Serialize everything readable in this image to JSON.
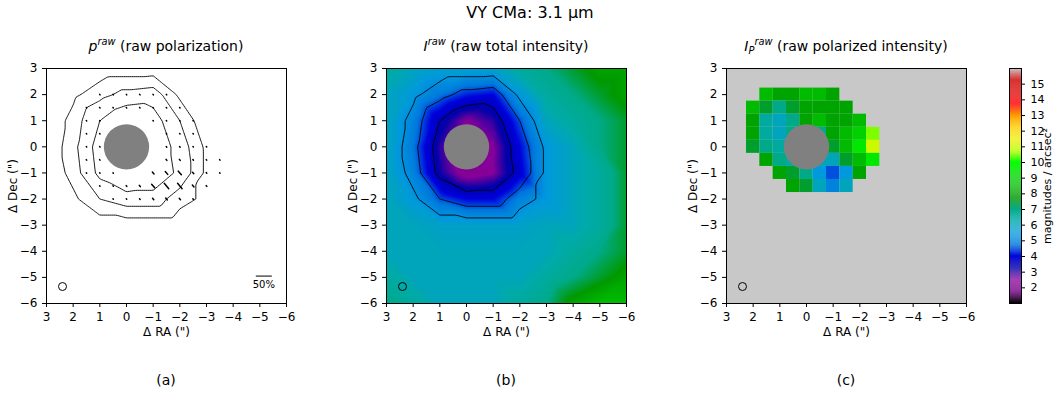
{
  "title": "VY CMa: 3.1 μm",
  "colorbar": {
    "range": [
      1,
      16
    ],
    "ticks": [
      2,
      3,
      4,
      5,
      6,
      7,
      8,
      9,
      10,
      11,
      12,
      13,
      14,
      15
    ],
    "label": "magnitudes / arcsec²"
  },
  "chart_data": [
    {
      "type": "vector",
      "panel": "(a)",
      "title": {
        "symbol": "p",
        "superscript": "raw",
        "text": "(raw polarization)"
      },
      "xlabel": "Δ RA (\")",
      "ylabel": "Δ Dec (\")",
      "xlim": [
        3,
        -6
      ],
      "ylim": [
        -6,
        3
      ],
      "xticks": [
        3,
        2,
        1,
        0,
        -1,
        -2,
        -3,
        -4,
        -5,
        -6
      ],
      "yticks": [
        -6,
        -5,
        -4,
        -3,
        -2,
        -1,
        0,
        1,
        2,
        3
      ],
      "contour_levels": [
        3.5,
        4.5,
        5.3
      ],
      "vectors": {
        "x": [
          1.5,
          1,
          0.5,
          0,
          -0.5,
          -1,
          -1.5,
          -2,
          -2.5,
          -3,
          -3.5
        ],
        "y": [
          2,
          1.5,
          1,
          0.5,
          0,
          -0.5,
          -1,
          -1.5,
          -2
        ],
        "p": [
          [
            null,
            2,
            2,
            2,
            2,
            2,
            2,
            null,
            null,
            null,
            null
          ],
          [
            2,
            2,
            2,
            2,
            2,
            2,
            2,
            2,
            null,
            null,
            null
          ],
          [
            2,
            2,
            null,
            null,
            null,
            2,
            2,
            2,
            2,
            null,
            null
          ],
          [
            2,
            2,
            null,
            null,
            null,
            null,
            2,
            2,
            2,
            null,
            null
          ],
          [
            2,
            2,
            null,
            null,
            null,
            null,
            3,
            3,
            2,
            2,
            null
          ],
          [
            2,
            2,
            null,
            null,
            null,
            null,
            4,
            4,
            3,
            2,
            2
          ],
          [
            2,
            2,
            2,
            null,
            null,
            8,
            12,
            15,
            6,
            3,
            2
          ],
          [
            null,
            2,
            2,
            3,
            5,
            15,
            22,
            22,
            8,
            3,
            null
          ],
          [
            null,
            null,
            2,
            2,
            3,
            6,
            8,
            6,
            3,
            null,
            null
          ]
        ],
        "angle": 40
      },
      "scale_bar": {
        "p": 50,
        "label": "50%",
        "x": -5.15,
        "y": -4.95
      },
      "mask": {
        "x": 0,
        "y": 0,
        "radius": 0.85
      },
      "beam": {
        "x": 2.4,
        "y": -5.35,
        "radius": 0.15
      }
    },
    {
      "type": "heatmap",
      "panel": "(b)",
      "title": {
        "symbol": "I",
        "superscript": "raw",
        "text": "(raw total intensity)"
      },
      "xlabel": "Δ RA (\")",
      "ylabel": "Δ Dec (\")",
      "xlim": [
        3,
        -6
      ],
      "ylim": [
        -6,
        3
      ],
      "xticks": [
        3,
        2,
        1,
        0,
        -1,
        -2,
        -3,
        -4,
        -5,
        -6
      ],
      "yticks": [
        -6,
        -5,
        -4,
        -3,
        -2,
        -1,
        0,
        1,
        2,
        3
      ],
      "contour_levels": [
        3.5,
        4.5,
        5.3
      ],
      "grid": {
        "x": [
          3,
          2,
          1,
          0,
          -1,
          -2,
          -3,
          -4,
          -5,
          -6
        ],
        "y": [
          3,
          2,
          1,
          0,
          -1,
          -2,
          -3,
          -4,
          -5,
          -6
        ],
        "values": [
          [
            6.5,
            6,
            5.8,
            5.8,
            5.8,
            6.5,
            7,
            7.5,
            8,
            8
          ],
          [
            6,
            5.5,
            4.8,
            4.2,
            4.0,
            5.5,
            6.5,
            7,
            7.5,
            8
          ],
          [
            6,
            5,
            3.5,
            2.5,
            3,
            4.5,
            6,
            6.5,
            7,
            7.5
          ],
          [
            6,
            4.8,
            3,
            1.8,
            2.5,
            4,
            5.5,
            6,
            7,
            7.5
          ],
          [
            6,
            5,
            3.2,
            2.2,
            2.5,
            3.8,
            5.5,
            6,
            6.5,
            7.5
          ],
          [
            6,
            5.5,
            4.5,
            4,
            4,
            5,
            5.5,
            6,
            6.5,
            7.5
          ],
          [
            6,
            6,
            5.8,
            5.8,
            5.8,
            5.8,
            6,
            6,
            6.5,
            7.5
          ],
          [
            6,
            6,
            6,
            6,
            6,
            6,
            6,
            6.5,
            7,
            7.5
          ],
          [
            6.5,
            6,
            6,
            6,
            6,
            6,
            6.5,
            7,
            7.5,
            8
          ],
          [
            7,
            6.5,
            6,
            6,
            6,
            6.5,
            7,
            8,
            8.5,
            8.5
          ]
        ]
      },
      "mask": {
        "x": 0,
        "y": 0,
        "radius": 0.85
      },
      "beam": {
        "x": 2.4,
        "y": -5.35,
        "radius": 0.15
      }
    },
    {
      "type": "heatmap",
      "panel": "(c)",
      "title": {
        "symbol": "I",
        "subscript": "P",
        "superscript": "raw",
        "text": "(raw polarized intensity)"
      },
      "xlabel": "Δ RA (\")",
      "ylabel": "Δ Dec (\")",
      "xlim": [
        3,
        -6
      ],
      "ylim": [
        -6,
        3
      ],
      "xticks": [
        3,
        2,
        1,
        0,
        -1,
        -2,
        -3,
        -4,
        -5,
        -6
      ],
      "yticks": [
        -6,
        -5,
        -4,
        -3,
        -2,
        -1,
        0,
        1,
        2,
        3
      ],
      "grid": {
        "x": [
          2,
          1.5,
          1,
          0.5,
          0,
          -0.5,
          -1,
          -1.5,
          -2,
          -2.5
        ],
        "y": [
          2,
          1.5,
          1,
          0.5,
          0,
          -0.5,
          -1,
          -1.5
        ],
        "values": [
          [
            null,
            8.5,
            8,
            8,
            8.5,
            8.5,
            8,
            null,
            null,
            null
          ],
          [
            8.5,
            7.5,
            7,
            7.5,
            8,
            8,
            8,
            8,
            null,
            null
          ],
          [
            8,
            6.5,
            6,
            7,
            8,
            8.5,
            8,
            8,
            8.5,
            null
          ],
          [
            8,
            6.5,
            6,
            7,
            7,
            7,
            8,
            8.5,
            9,
            10.5
          ],
          [
            7.5,
            7,
            6.5,
            6,
            6,
            6,
            7.5,
            8.5,
            9.5,
            11
          ],
          [
            null,
            8,
            7,
            6.5,
            6,
            6,
            6,
            7.5,
            8.5,
            9.5
          ],
          [
            null,
            null,
            8,
            7.5,
            7,
            5.5,
            4.5,
            5.5,
            8,
            null
          ],
          [
            null,
            null,
            null,
            8,
            7.5,
            6,
            5,
            6,
            null,
            null
          ]
        ]
      },
      "mask": {
        "x": 0,
        "y": 0,
        "radius": 0.85
      },
      "beam": {
        "x": 2.4,
        "y": -5.35,
        "radius": 0.15
      }
    }
  ]
}
